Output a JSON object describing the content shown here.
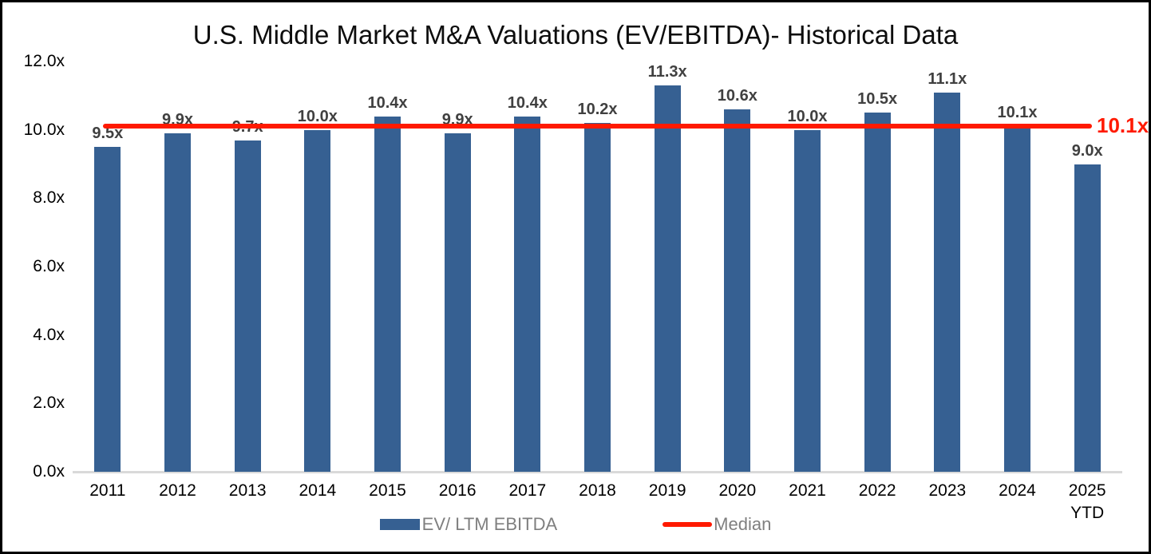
{
  "chart_data": {
    "type": "bar",
    "title": "U.S. Middle Market M&A Valuations (EV/EBITDA)- Historical Data",
    "series_name": "EV/ LTM EBITDA",
    "categories": [
      "2011",
      "2012",
      "2013",
      "2014",
      "2015",
      "2016",
      "2017",
      "2018",
      "2019",
      "2020",
      "2021",
      "2022",
      "2023",
      "2024",
      "2025\nYTD"
    ],
    "values": [
      9.5,
      9.9,
      9.7,
      10.0,
      10.4,
      9.9,
      10.4,
      10.2,
      11.3,
      10.6,
      10.0,
      10.5,
      11.1,
      10.1,
      9.0
    ],
    "data_labels": [
      "9.5x",
      "9.9x",
      "9.7x",
      "10.0x",
      "10.4x",
      "9.9x",
      "10.4x",
      "10.2x",
      "11.3x",
      "10.6x",
      "10.0x",
      "10.5x",
      "11.1x",
      "10.1x",
      "9.0x"
    ],
    "y_ticks": [
      "12.0x",
      "10.0x",
      "8.0x",
      "6.0x",
      "4.0x",
      "2.0x",
      "0.0x"
    ],
    "ylim": [
      0,
      12
    ],
    "grid": false,
    "legend_position": "bottom",
    "median": {
      "value": 10.1,
      "label": "10.1x",
      "legend": "Median"
    },
    "colors": {
      "bar": "#366092",
      "median": "#ff1a00",
      "data_label": "#404040",
      "legend_text": "#7f7f7f",
      "axis_line": "#d9d9d9",
      "title": "#0d0d0d"
    }
  }
}
